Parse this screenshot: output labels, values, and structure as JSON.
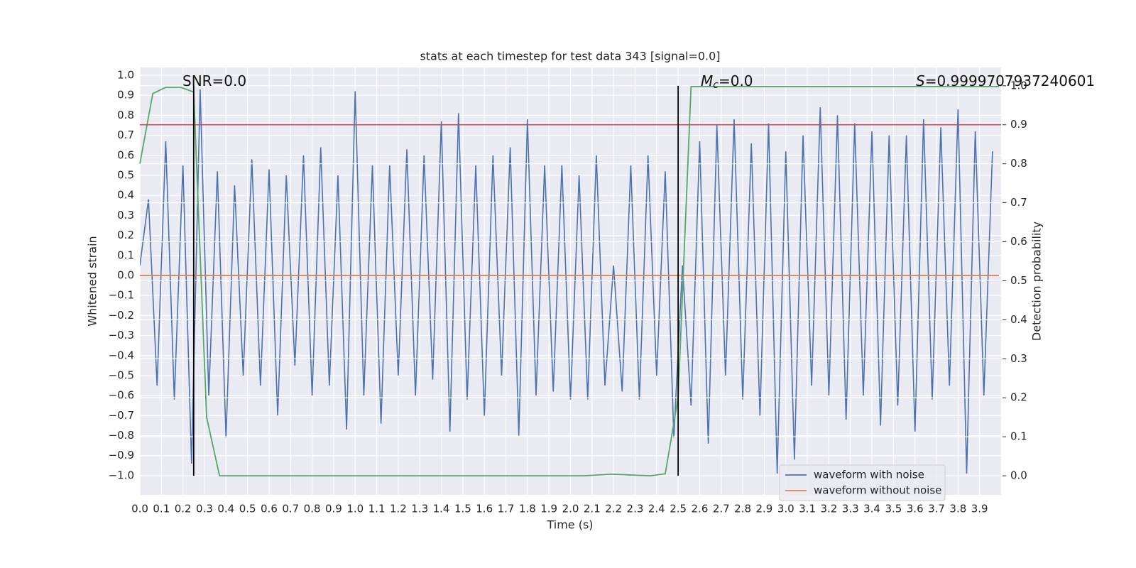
{
  "chart_data": {
    "type": "line",
    "title": "stats at each timestep for test data 343 [signal=0.0]",
    "xlabel": "Time (s)",
    "ylabel": "Whitened strain",
    "y2label": "Detection probability",
    "xlim": [
      0,
      4.0
    ],
    "ylim": [
      -1.096,
      1.039
    ],
    "y2lim": [
      -0.049,
      1.047
    ],
    "grid": true,
    "legend": "lower right",
    "xticks": [
      {
        "value": 0,
        "label": "0.0"
      },
      0.1,
      0.2,
      0.3,
      0.4,
      0.5,
      0.6,
      0.7,
      0.8,
      0.9,
      {
        "value": 1,
        "label": "1.0"
      },
      1.1,
      1.2,
      1.3,
      1.4,
      1.5,
      1.6,
      1.7,
      1.8,
      1.9,
      {
        "value": 2,
        "label": "2.0"
      },
      2.1,
      2.2,
      2.3,
      2.4,
      2.5,
      2.6,
      2.7,
      2.8,
      2.9,
      {
        "value": 3,
        "label": "3.0"
      },
      3.1,
      3.2,
      3.3,
      3.4,
      3.5,
      3.6,
      3.7,
      3.8,
      3.9
    ],
    "yticks": [
      {
        "value": -1,
        "label": "−1.0"
      },
      {
        "value": -0.9,
        "label": "−0.9"
      },
      {
        "value": -0.8,
        "label": "−0.8"
      },
      {
        "value": -0.7,
        "label": "−0.7"
      },
      {
        "value": -0.6,
        "label": "−0.6"
      },
      {
        "value": -0.5,
        "label": "−0.5"
      },
      {
        "value": -0.4,
        "label": "−0.4"
      },
      {
        "value": -0.3,
        "label": "−0.3"
      },
      {
        "value": -0.2,
        "label": "−0.2"
      },
      {
        "value": -0.1,
        "label": "−0.1"
      },
      {
        "value": 0,
        "label": "0.0"
      },
      0.1,
      0.2,
      0.3,
      0.4,
      0.5,
      0.6,
      0.7,
      0.8,
      0.9,
      {
        "value": 1,
        "label": "1.0"
      }
    ],
    "y2ticks": [
      {
        "value": 0,
        "label": "0.0"
      },
      0.1,
      0.2,
      0.3,
      0.4,
      0.5,
      0.6,
      0.7,
      0.8,
      0.9,
      {
        "value": 1,
        "label": "1.0"
      }
    ],
    "series": [
      {
        "name": "waveform with noise",
        "color": "#4c72b0",
        "x": [
          0,
          0.04,
          0.08,
          0.12,
          0.16,
          0.2,
          0.24,
          0.28,
          0.32,
          0.36,
          0.4,
          0.44,
          0.48,
          0.52,
          0.56,
          0.6,
          0.64,
          0.68,
          0.72,
          0.76,
          0.8,
          0.84,
          0.88,
          0.92,
          0.96,
          1.0,
          1.04,
          1.08,
          1.12,
          1.16,
          1.2,
          1.24,
          1.28,
          1.32,
          1.36,
          1.4,
          1.44,
          1.48,
          1.52,
          1.56,
          1.6,
          1.64,
          1.68,
          1.72,
          1.76,
          1.8,
          1.84,
          1.88,
          1.92,
          1.96,
          2.0,
          2.04,
          2.08,
          2.12,
          2.16,
          2.2,
          2.24,
          2.28,
          2.32,
          2.36,
          2.4,
          2.44,
          2.48,
          2.52,
          2.56,
          2.6,
          2.64,
          2.68,
          2.72,
          2.76,
          2.8,
          2.84,
          2.88,
          2.92,
          2.96,
          3.0,
          3.04,
          3.08,
          3.12,
          3.16,
          3.2,
          3.24,
          3.28,
          3.32,
          3.36,
          3.4,
          3.44,
          3.48,
          3.52,
          3.56,
          3.6,
          3.64,
          3.68,
          3.72,
          3.76,
          3.8,
          3.84,
          3.88,
          3.92,
          3.96
        ],
        "values": [
          0.05,
          0.38,
          -0.55,
          0.67,
          -0.62,
          0.55,
          -0.94,
          0.93,
          -0.6,
          0.52,
          -0.81,
          0.45,
          -0.5,
          0.58,
          -0.55,
          0.53,
          -0.7,
          0.5,
          -0.45,
          0.6,
          -0.6,
          0.64,
          -0.55,
          0.5,
          -0.77,
          0.92,
          -0.6,
          0.55,
          -0.74,
          0.55,
          -0.5,
          0.63,
          -0.6,
          0.6,
          -0.52,
          0.77,
          -0.78,
          0.81,
          -0.62,
          0.55,
          -0.7,
          0.6,
          -0.5,
          0.64,
          -0.8,
          0.78,
          -0.6,
          0.55,
          -0.58,
          0.55,
          -0.62,
          0.5,
          -0.62,
          0.6,
          -0.55,
          0.05,
          -0.58,
          0.55,
          -0.62,
          0.6,
          -0.5,
          0.52,
          -0.81,
          0.05,
          -0.65,
          0.67,
          -0.84,
          0.75,
          -0.5,
          0.78,
          -0.62,
          0.66,
          -0.7,
          0.76,
          -0.99,
          0.62,
          -0.92,
          0.7,
          -0.55,
          0.84,
          -0.6,
          0.8,
          -0.72,
          0.76,
          -0.6,
          0.72,
          -0.75,
          0.7,
          -0.65,
          0.7,
          -0.78,
          0.78,
          -0.62,
          0.74,
          -0.55,
          0.83,
          -0.99,
          0.72,
          -0.6,
          0.62
        ]
      },
      {
        "name": "waveform without noise",
        "color": "#dd8452",
        "x": [
          0,
          3.99
        ],
        "values": [
          0,
          0
        ]
      },
      {
        "color": "#55a868",
        "axis": "y2",
        "x": [
          0.0,
          0.06,
          0.12,
          0.19,
          0.25,
          0.31,
          0.37,
          2.06,
          2.19,
          2.37,
          2.44,
          2.5,
          2.56,
          3.99
        ],
        "values": [
          0.8,
          0.98,
          0.996,
          0.996,
          0.984,
          0.15,
          0.0,
          0.0,
          0.004,
          0.0,
          0.005,
          0.2,
          0.998,
          0.998
        ]
      }
    ],
    "hlines": [
      {
        "y": 0.9,
        "axis": "y2",
        "color": "#c44e52"
      }
    ],
    "vlines": [
      {
        "x": 0.25,
        "ymin": 0,
        "ymax": 1,
        "axis": "y2",
        "color": "#000000"
      },
      {
        "x": 2.5,
        "ymin": 0,
        "ymax": 1,
        "axis": "y2",
        "color": "#000000"
      }
    ],
    "annotations": [
      {
        "text": "SNR=0.0"
      },
      {
        "italic": "M",
        "sub": "c",
        "text": "=0.0"
      },
      {
        "italic": "S",
        "text": "=0.9999707937240601"
      }
    ]
  }
}
